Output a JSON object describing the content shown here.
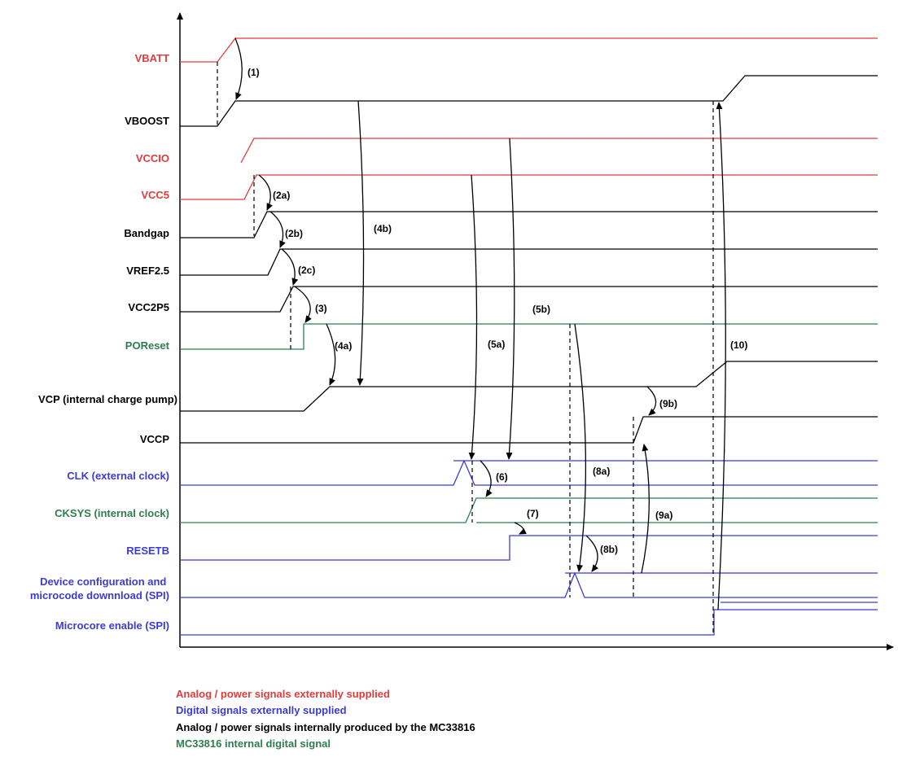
{
  "colors": {
    "analog_external": "#e03c3c",
    "digital_external": "#3b3bd6",
    "analog_internal": "#000000",
    "internal_digital": "#2e7d4f"
  },
  "signals": [
    {
      "id": "vbatt",
      "label": "VBATT",
      "category": "analog_external"
    },
    {
      "id": "vboost",
      "label": "VBOOST",
      "category": "analog_internal"
    },
    {
      "id": "vccio",
      "label": "VCCIO",
      "category": "analog_external"
    },
    {
      "id": "vcc5",
      "label": "VCC5",
      "category": "analog_external"
    },
    {
      "id": "bandgap",
      "label": "Bandgap",
      "category": "analog_internal"
    },
    {
      "id": "vref",
      "label": "VREF2.5",
      "category": "analog_internal"
    },
    {
      "id": "vcc2p5",
      "label": "VCC2P5",
      "category": "analog_internal"
    },
    {
      "id": "poreset",
      "label": "POReset",
      "category": "internal_digital"
    },
    {
      "id": "vcp",
      "label": "VCP (internal charge pump)",
      "category": "analog_internal"
    },
    {
      "id": "vccp",
      "label": "VCCP",
      "category": "analog_internal"
    },
    {
      "id": "clk",
      "label": "CLK (external clock)",
      "category": "digital_external"
    },
    {
      "id": "cksys",
      "label": "CKSYS (internal clock)",
      "category": "internal_digital"
    },
    {
      "id": "resetb",
      "label": "RESETB",
      "category": "digital_external"
    },
    {
      "id": "devcfg",
      "label": "Device configuration and microcode downnload (SPI)",
      "category": "digital_external"
    },
    {
      "id": "mcen",
      "label": "Microcore enable (SPI)",
      "category": "digital_external"
    }
  ],
  "annotations": [
    "(1)",
    "(2a)",
    "(2b)",
    "(2c)",
    "(3)",
    "(4a)",
    "(4b)",
    "(5a)",
    "(5b)",
    "(6)",
    "(7)",
    "(8a)",
    "(8b)",
    "(9a)",
    "(9b)",
    "(10)"
  ],
  "legend": [
    {
      "text": "Analog / power signals externally supplied",
      "category": "analog_external"
    },
    {
      "text": "Digital signals externally supplied",
      "category": "digital_external"
    },
    {
      "text": "Analog / power signals internally produced by the MC33816",
      "category": "analog_internal"
    },
    {
      "text": "MC33816 internal digital signal",
      "category": "internal_digital"
    }
  ]
}
